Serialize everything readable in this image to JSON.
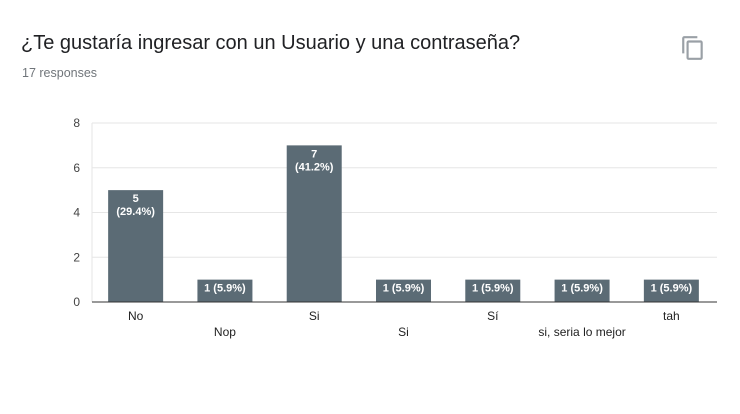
{
  "header": {
    "title": "¿Te gustaría ingresar con un Usuario y una contraseña?",
    "responses": "17 responses",
    "copy_icon": "copy-icon"
  },
  "colors": {
    "bar": "#5b6b75",
    "grid": "#e6e6e6",
    "axis": "#333333"
  },
  "chart_data": {
    "type": "bar",
    "title": "¿Te gustaría ingresar con un Usuario y una contraseña?",
    "xlabel": "",
    "ylabel": "",
    "categories": [
      "No",
      "Nop",
      "Si",
      "Si",
      "Sí",
      "si, seria lo mejor",
      "tah"
    ],
    "values": [
      5,
      1,
      7,
      1,
      1,
      1,
      1
    ],
    "data_labels": [
      [
        "5",
        "(29.4%)"
      ],
      [
        "1 (5.9%)"
      ],
      [
        "7",
        "(41.2%)"
      ],
      [
        "1 (5.9%)"
      ],
      [
        "1 (5.9%)"
      ],
      [
        "1 (5.9%)"
      ],
      [
        "1 (5.9%)"
      ]
    ],
    "ylim": [
      0,
      8
    ],
    "yticks": [
      0,
      2,
      4,
      6,
      8
    ],
    "grid": true,
    "legend": "none"
  }
}
